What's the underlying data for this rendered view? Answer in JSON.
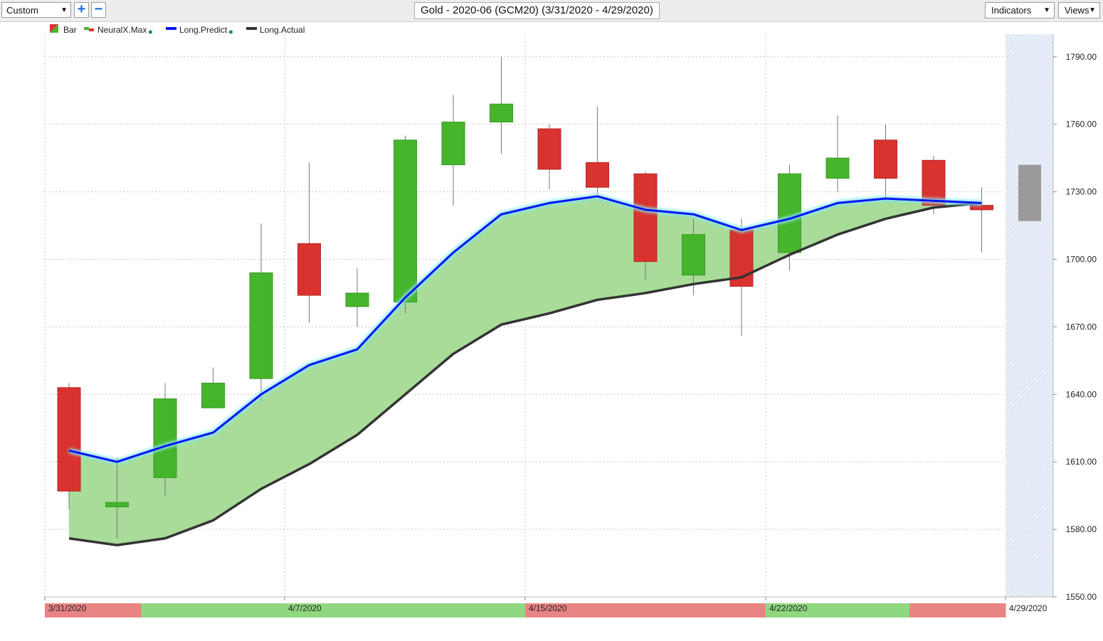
{
  "toolbar": {
    "layout_select": "Custom",
    "title": "Gold - 2020-06 (GCM20) (3/31/2020 - 4/29/2020)",
    "indicators_label": "Indicators",
    "views_label": "Views",
    "add_icon": "plus-icon",
    "remove_icon": "minus-icon"
  },
  "colors": {
    "up": "#46b52c",
    "down": "#d9322f",
    "predict": "#0a14f0",
    "actual": "#333333",
    "band": "#a8dc98",
    "signal_up": "#90d880",
    "signal_down": "#e98484"
  },
  "chart_data": {
    "type": "candlestick",
    "legend": [
      "Bar",
      "NeuralX.Max",
      "Long.Predict",
      "Long.Actual"
    ],
    "y_ticks": [
      "1790.00",
      "1760.00",
      "1730.00",
      "1700.00",
      "1670.00",
      "1640.00",
      "1610.00",
      "1580.00",
      "1550.00"
    ],
    "ylim": [
      1548,
      1818
    ],
    "x_labels": [
      {
        "i": 0,
        "text": "3/31/2020"
      },
      {
        "i": 5,
        "text": "4/7/2020"
      },
      {
        "i": 10,
        "text": "4/15/2020"
      },
      {
        "i": 15,
        "text": "4/22/2020"
      },
      {
        "i": 20,
        "text": "4/29/2020"
      }
    ],
    "candles": [
      {
        "o": 1643,
        "h": 1645,
        "l": 1589,
        "c": 1597
      },
      {
        "o": 1590,
        "h": 1612,
        "l": 1576,
        "c": 1592
      },
      {
        "o": 1603,
        "h": 1645,
        "l": 1595,
        "c": 1638
      },
      {
        "o": 1634,
        "h": 1652,
        "l": 1634,
        "c": 1645
      },
      {
        "o": 1647,
        "h": 1716,
        "l": 1637,
        "c": 1694
      },
      {
        "o": 1707,
        "h": 1743,
        "l": 1672,
        "c": 1684
      },
      {
        "o": 1679,
        "h": 1696,
        "l": 1670,
        "c": 1685
      },
      {
        "o": 1681,
        "h": 1755,
        "l": 1676,
        "c": 1753
      },
      {
        "o": 1742,
        "h": 1773,
        "l": 1724,
        "c": 1761
      },
      {
        "o": 1761,
        "h": 1790,
        "l": 1747,
        "c": 1769
      },
      {
        "o": 1758,
        "h": 1760,
        "l": 1731,
        "c": 1740
      },
      {
        "o": 1743,
        "h": 1768,
        "l": 1729,
        "c": 1732
      },
      {
        "o": 1738,
        "h": 1739,
        "l": 1691,
        "c": 1699
      },
      {
        "o": 1693,
        "h": 1718,
        "l": 1684,
        "c": 1711
      },
      {
        "o": 1713,
        "h": 1718,
        "l": 1666,
        "c": 1688
      },
      {
        "o": 1703,
        "h": 1742,
        "l": 1695,
        "c": 1738
      },
      {
        "o": 1736,
        "h": 1764,
        "l": 1730,
        "c": 1745
      },
      {
        "o": 1753,
        "h": 1760,
        "l": 1726,
        "c": 1736
      },
      {
        "o": 1744,
        "h": 1746,
        "l": 1720,
        "c": 1724
      },
      {
        "o": 1724,
        "h": 1732,
        "l": 1703,
        "c": 1722
      }
    ],
    "forecast_bar": {
      "i": 20,
      "top": 1742,
      "bottom": 1717
    },
    "series": [
      {
        "name": "Long.Predict",
        "values": [
          1615,
          1610,
          1617,
          1623,
          1640,
          1653,
          1660,
          1683,
          1703,
          1720,
          1725,
          1728,
          1722,
          1720,
          1713,
          1718,
          1725,
          1727,
          1726,
          1725
        ]
      },
      {
        "name": "Long.Actual",
        "values": [
          1576,
          1573,
          1576,
          1584,
          1598,
          1609,
          1622,
          1640,
          1658,
          1671,
          1676,
          1682,
          1685,
          1689,
          1692,
          1702,
          1711,
          1718,
          1723,
          1725
        ]
      }
    ],
    "signal_bar": [
      "down",
      "down",
      "up",
      "up",
      "up",
      "up",
      "up",
      "up",
      "up",
      "up",
      "down",
      "down",
      "down",
      "down",
      "down",
      "up",
      "up",
      "up",
      "down",
      "down"
    ]
  }
}
